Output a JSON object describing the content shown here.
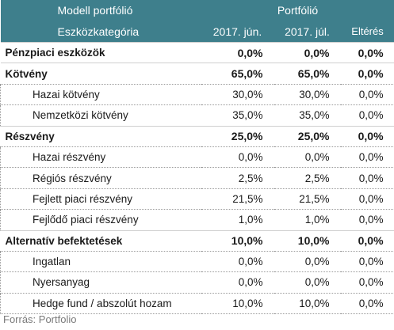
{
  "header": {
    "model_label": "Modell portfólió",
    "portfolio_label": "Portfólió",
    "category_label": "Eszközkategória",
    "col_jun": "2017. jún.",
    "col_jul": "2017. júl.",
    "col_diff": "Eltérés"
  },
  "rows": [
    {
      "name": "Pénzpiaci eszközök",
      "jun": "0,0%",
      "jul": "0,0%",
      "diff": "0,0%"
    },
    {
      "name": "Kötvény",
      "jun": "65,0%",
      "jul": "65,0%",
      "diff": "0,0%"
    },
    {
      "name": "Hazai kötvény",
      "jun": "30,0%",
      "jul": "30,0%",
      "diff": "0,0%"
    },
    {
      "name": "Nemzetközi kötvény",
      "jun": "35,0%",
      "jul": "35,0%",
      "diff": "0,0%"
    },
    {
      "name": "Részvény",
      "jun": "25,0%",
      "jul": "25,0%",
      "diff": "0,0%"
    },
    {
      "name": "Hazai részvény",
      "jun": "0,0%",
      "jul": "0,0%",
      "diff": "0,0%"
    },
    {
      "name": "Régiós részvény",
      "jun": "2,5%",
      "jul": "2,5%",
      "diff": "0,0%"
    },
    {
      "name": "Fejlett piaci részvény",
      "jun": "21,5%",
      "jul": "21,5%",
      "diff": "0,0%"
    },
    {
      "name": "Fejlődő piaci részvény",
      "jun": "1,0%",
      "jul": "1,0%",
      "diff": "0,0%"
    },
    {
      "name": "Alternatív befektetések",
      "jun": "10,0%",
      "jul": "10,0%",
      "diff": "0,0%"
    },
    {
      "name": "Ingatlan",
      "jun": "0,0%",
      "jul": "0,0%",
      "diff": "0,0%"
    },
    {
      "name": "Nyersanyag",
      "jun": "0,0%",
      "jul": "0,0%",
      "diff": "0,0%"
    },
    {
      "name": "Hedge fund / abszolút hozam",
      "jun": "10,0%",
      "jul": "10,0%",
      "diff": "0,0%"
    }
  ],
  "source": "Forrás: Portfolio",
  "colors": {
    "header_bg": "#3e7f8c",
    "header_text": "#ffffff",
    "source_text": "#7a7a7a"
  }
}
